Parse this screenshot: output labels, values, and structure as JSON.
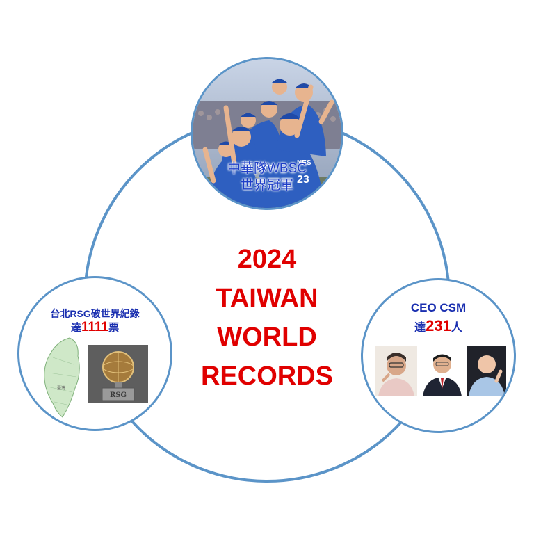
{
  "center": {
    "line1": "2024",
    "line2": "TAIWAN",
    "line3": "WORLD",
    "line4": "RECORDS"
  },
  "top_node": {
    "caption_line1": "中華隊WBSC",
    "caption_line2": "世界冠軍",
    "jersey_text_1": "NES",
    "jersey_text_2": "NES",
    "jersey_number": "23"
  },
  "left_node": {
    "title_prefix": "台北RSG破世界紀錄",
    "count_prefix": "達",
    "count": "1111",
    "count_suffix": "票",
    "map_label": "臺灣",
    "trophy_label": "RSG"
  },
  "right_node": {
    "title": "CEO CSM",
    "count_prefix": "達",
    "count": "231",
    "count_suffix": "人"
  },
  "colors": {
    "ring": "#5b94c8",
    "title_red": "#e00000",
    "label_blue": "#1a2fb0",
    "jersey_blue": "#2e5fc0"
  }
}
